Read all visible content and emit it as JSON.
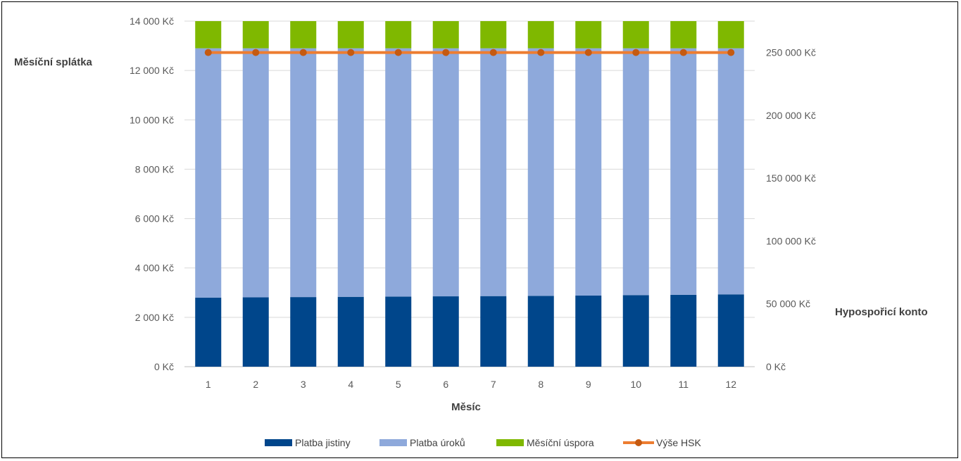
{
  "chart_data": {
    "type": "bar",
    "stacked": true,
    "title": "",
    "xlabel": "Měsíc",
    "ylabel": "Měsíční splátka",
    "y2label": "Hypospořicí konto",
    "categories": [
      "1",
      "2",
      "3",
      "4",
      "5",
      "6",
      "7",
      "8",
      "9",
      "10",
      "11",
      "12"
    ],
    "ylim": [
      0,
      14000
    ],
    "y2lim": [
      0,
      275000
    ],
    "yticks": [
      "0 Kč",
      "2 000 Kč",
      "4 000 Kč",
      "6 000 Kč",
      "8 000 Kč",
      "10 000 Kč",
      "12 000 Kč",
      "14 000 Kč"
    ],
    "y2ticks": [
      "0 Kč",
      "50 000 Kč",
      "100 000 Kč",
      "150 000 Kč",
      "200 000 Kč",
      "250 000 Kč"
    ],
    "grid": true,
    "legend_position": "bottom",
    "series": [
      {
        "name": "Platba jistiny",
        "type": "bar",
        "axis": "left",
        "color": "#00468B",
        "values": [
          2800,
          2810,
          2820,
          2830,
          2840,
          2850,
          2860,
          2870,
          2880,
          2900,
          2910,
          2930
        ]
      },
      {
        "name": "Platba úroků",
        "type": "bar",
        "axis": "left",
        "color": "#8EA9DB",
        "values": [
          10100,
          10090,
          10080,
          10070,
          10060,
          10050,
          10040,
          10030,
          10020,
          10000,
          9990,
          9970
        ]
      },
      {
        "name": "Měsíční úspora",
        "type": "bar",
        "axis": "left",
        "color": "#7FB800",
        "values": [
          1100,
          1100,
          1100,
          1100,
          1100,
          1100,
          1100,
          1100,
          1100,
          1100,
          1100,
          1100
        ]
      },
      {
        "name": "Výše HSK",
        "type": "line",
        "axis": "right",
        "color": "#ED7D31",
        "marker_color": "#C55A11",
        "values": [
          250000,
          250000,
          250000,
          250000,
          250000,
          250000,
          250000,
          250000,
          250000,
          250000,
          250000,
          250000
        ]
      }
    ]
  }
}
